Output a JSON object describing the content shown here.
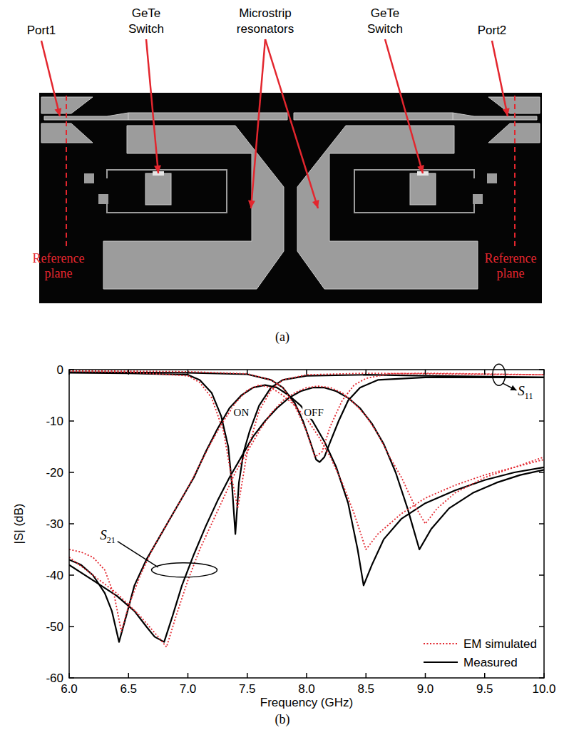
{
  "panel_a": {
    "caption": "(a)",
    "labels": [
      "Port1",
      "GeTe Switch",
      "Microstrip resonators",
      "GeTe Switch",
      "Port2"
    ],
    "reference_labels": [
      "Reference plane",
      "Reference plane"
    ]
  },
  "chart_data": {
    "type": "line",
    "caption": "(b)",
    "x_label": "Frequency (GHz)",
    "y_label": "|S| (dB)",
    "xlim": [
      6,
      10
    ],
    "xticks": [
      {
        "value": 6,
        "label": "6.0"
      },
      {
        "value": 6.5,
        "label": "6.5"
      },
      {
        "value": 7,
        "label": "7.0"
      },
      {
        "value": 7.5,
        "label": "7.5"
      },
      {
        "value": 8,
        "label": "8.0"
      },
      {
        "value": 8.5,
        "label": "8.5"
      },
      {
        "value": 9,
        "label": "9.0"
      },
      {
        "value": 9.5,
        "label": "9.5"
      },
      {
        "value": 10,
        "label": "10.0"
      }
    ],
    "ylim": [
      -60,
      0
    ],
    "yticks": [
      0,
      -10,
      -20,
      -30,
      -40,
      -50,
      -60
    ],
    "grid": false,
    "legend": "bottom-right",
    "annotations": [
      {
        "text": "ON",
        "x": 7.45,
        "y": -9
      },
      {
        "text": "OFF",
        "x": 8.06,
        "y": -9
      },
      {
        "text": "S11",
        "x": 9.78,
        "y": -5,
        "target_x": 9.62,
        "target_y": -1
      },
      {
        "text": "S21",
        "x": 6.26,
        "y": -33,
        "target_x": 6.97,
        "target_y": -39
      }
    ],
    "series": [
      {
        "name": "EM simulated",
        "color": "#e3262e",
        "line_style": "dotted",
        "x": [
          6.0,
          6.1,
          6.2,
          6.3,
          6.38,
          6.44,
          6.5,
          6.6,
          6.7,
          6.8,
          6.9,
          7.0,
          7.1,
          7.2,
          7.3,
          7.4,
          7.5,
          7.6,
          7.7,
          7.8,
          7.9,
          8.0,
          8.1,
          8.2,
          8.3,
          8.4,
          8.5,
          8.6,
          8.8,
          9.0,
          9.25,
          9.5,
          9.75,
          10.0
        ],
        "values": [
          -35,
          -35.5,
          -36.5,
          -39,
          -44,
          -51,
          -46,
          -40,
          -35,
          -31,
          -27,
          -23,
          -18.5,
          -14,
          -10,
          -6.5,
          -4,
          -3,
          -3.5,
          -5,
          -7,
          -9.5,
          -13,
          -17,
          -22,
          -28,
          -35,
          -32,
          -28,
          -25,
          -22.5,
          -20.5,
          -19,
          -17.5
        ]
      },
      {
        "name": "EM simulated",
        "color": "#e3262e",
        "line_style": "dotted",
        "x": [
          6.0,
          6.2,
          6.4,
          6.6,
          6.75,
          6.82,
          6.9,
          7.0,
          7.1,
          7.2,
          7.3,
          7.4,
          7.5,
          7.6,
          7.7,
          7.8,
          7.9,
          8.0,
          8.1,
          8.2,
          8.3,
          8.4,
          8.5,
          8.6,
          8.7,
          8.8,
          8.9,
          9.0,
          9.1,
          9.25,
          9.5,
          9.75,
          10.0
        ],
        "values": [
          -36.5,
          -40,
          -43.5,
          -48,
          -52,
          -54,
          -48,
          -41,
          -35,
          -30,
          -25,
          -20,
          -16,
          -12,
          -8.5,
          -6,
          -4.5,
          -3.5,
          -3.2,
          -3.5,
          -4.5,
          -6.5,
          -9,
          -12.5,
          -17,
          -21,
          -26,
          -30,
          -27,
          -24,
          -21,
          -19,
          -17
        ]
      },
      {
        "name": "EM simulated",
        "color": "#e3262e",
        "line_style": "dotted",
        "x": [
          6.0,
          6.5,
          7.0,
          7.1,
          7.2,
          7.3,
          7.36,
          7.42,
          7.5,
          7.6,
          7.7,
          7.8,
          8.0,
          8.5,
          9.0,
          10.0
        ],
        "values": [
          -0.3,
          -0.5,
          -1.2,
          -2.5,
          -5.5,
          -12,
          -20,
          -27,
          -16,
          -8,
          -4,
          -2,
          -1,
          -0.7,
          -0.8,
          -1
        ]
      },
      {
        "name": "EM simulated",
        "color": "#e3262e",
        "line_style": "dotted",
        "x": [
          6.0,
          7.0,
          7.5,
          7.7,
          7.8,
          7.9,
          8.0,
          8.07,
          8.13,
          8.2,
          8.3,
          8.4,
          8.5,
          8.7,
          9.0,
          10.0
        ],
        "values": [
          -0.2,
          -0.4,
          -0.8,
          -2,
          -3.5,
          -7,
          -12,
          -17,
          -16,
          -11,
          -6,
          -3,
          -1.7,
          -0.8,
          -0.7,
          -1
        ]
      },
      {
        "name": "Measured",
        "color": "#000000",
        "line_style": "solid",
        "x": [
          6.0,
          6.1,
          6.2,
          6.3,
          6.36,
          6.42,
          6.48,
          6.55,
          6.65,
          6.75,
          6.85,
          6.95,
          7.05,
          7.15,
          7.25,
          7.35,
          7.45,
          7.55,
          7.65,
          7.75,
          7.85,
          7.95,
          8.05,
          8.15,
          8.25,
          8.35,
          8.43,
          8.48,
          8.55,
          8.65,
          8.8,
          9.0,
          9.25,
          9.5,
          9.75,
          10.0
        ],
        "values": [
          -37,
          -38,
          -40,
          -43.5,
          -47,
          -53,
          -48,
          -42,
          -37,
          -33,
          -29,
          -25,
          -21,
          -16,
          -11.5,
          -7.5,
          -5,
          -3.5,
          -3,
          -3.5,
          -5,
          -7,
          -10,
          -14,
          -19,
          -26,
          -35,
          -42,
          -38,
          -33,
          -29,
          -26,
          -23.5,
          -21.5,
          -20,
          -19
        ]
      },
      {
        "name": "Measured",
        "color": "#000000",
        "line_style": "solid",
        "x": [
          6.0,
          6.2,
          6.4,
          6.55,
          6.65,
          6.72,
          6.8,
          6.87,
          6.95,
          7.05,
          7.15,
          7.25,
          7.35,
          7.45,
          7.55,
          7.65,
          7.75,
          7.85,
          7.95,
          8.05,
          8.15,
          8.25,
          8.35,
          8.45,
          8.55,
          8.65,
          8.75,
          8.85,
          8.95,
          9.05,
          9.2,
          9.4,
          9.6,
          9.8,
          10.0
        ],
        "values": [
          -38,
          -41,
          -44,
          -47,
          -50,
          -52,
          -53,
          -48,
          -42,
          -36,
          -30.5,
          -25.5,
          -21,
          -17,
          -13,
          -10,
          -7.5,
          -5.5,
          -4.2,
          -3.5,
          -3.5,
          -4.2,
          -5.5,
          -7.5,
          -10.5,
          -14.5,
          -20,
          -27,
          -35,
          -31,
          -27,
          -24,
          -22,
          -20.5,
          -19.5
        ]
      },
      {
        "name": "Measured",
        "color": "#000000",
        "line_style": "solid",
        "x": [
          6.0,
          6.5,
          7.0,
          7.1,
          7.2,
          7.28,
          7.34,
          7.37,
          7.4,
          7.43,
          7.47,
          7.52,
          7.6,
          7.7,
          7.8,
          8.0,
          8.5,
          9.0,
          10.0
        ],
        "values": [
          -0.6,
          -0.7,
          -1,
          -2,
          -4.5,
          -9,
          -15,
          -22,
          -32,
          -22,
          -16,
          -12,
          -7,
          -3.5,
          -2,
          -1.2,
          -1,
          -1.2,
          -1.5
        ]
      },
      {
        "name": "Measured",
        "color": "#000000",
        "line_style": "solid",
        "x": [
          6.0,
          7.0,
          7.5,
          7.7,
          7.8,
          7.9,
          7.97,
          8.03,
          8.08,
          8.11,
          8.15,
          8.2,
          8.27,
          8.35,
          8.45,
          8.6,
          9.0,
          10.0
        ],
        "values": [
          -0.5,
          -0.6,
          -0.9,
          -2,
          -3.5,
          -6.5,
          -10,
          -14,
          -17.5,
          -18,
          -17,
          -14,
          -10,
          -6,
          -3.5,
          -2,
          -1.5,
          -1.5
        ]
      }
    ]
  }
}
